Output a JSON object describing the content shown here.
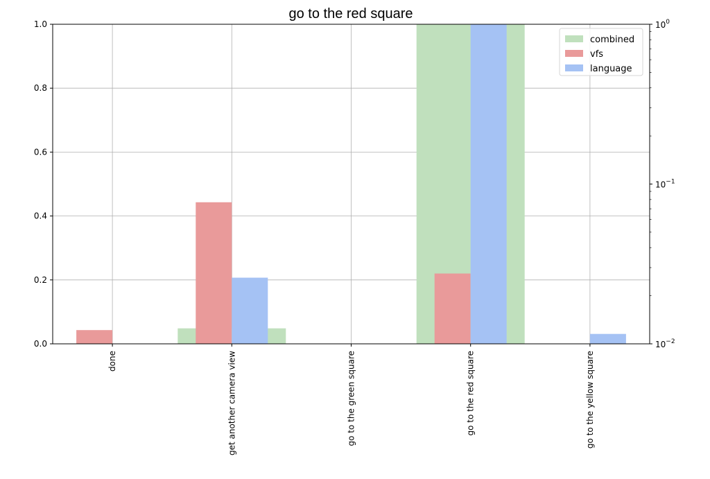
{
  "chart_data": {
    "type": "bar",
    "title": "go to the red square",
    "xlabel": "",
    "ylabel": "",
    "categories": [
      "done",
      "get another camera view",
      "go to the green square",
      "go to the red square",
      "go to the yellow square"
    ],
    "series": [
      {
        "name": "combined",
        "color": "#c0e0bd",
        "axis": "right-log",
        "values": [
          0,
          0.0125,
          0,
          1.0,
          0
        ]
      },
      {
        "name": "vfs",
        "color": "#e99a9a",
        "axis": "left",
        "values": [
          0.043,
          0.443,
          0,
          0.22,
          0
        ]
      },
      {
        "name": "language",
        "color": "#a5c2f4",
        "axis": "left",
        "values": [
          0,
          0.207,
          0,
          1.0,
          0.031
        ]
      }
    ],
    "ylim": [
      0,
      1.0
    ],
    "yticks": [
      "0.0",
      "0.2",
      "0.4",
      "0.6",
      "0.8",
      "1.0"
    ],
    "y2lim": [
      0.01,
      1
    ],
    "y2ticks": [
      {
        "value": 1,
        "base": "10",
        "exp": "0"
      },
      {
        "value": 0.1,
        "base": "10",
        "exp": "−1"
      },
      {
        "value": 0.01,
        "base": "10",
        "exp": "−2"
      }
    ],
    "grid": true,
    "legend_position": "top-right"
  }
}
